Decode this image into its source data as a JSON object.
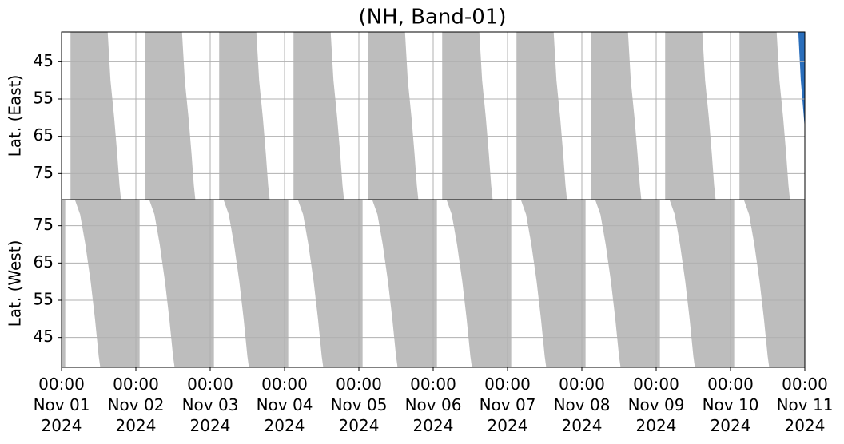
{
  "chart_data": [
    {
      "type": "area",
      "title": "(NH, Band-01)",
      "ylabel": "Lat. (East)",
      "xlim": [
        0,
        240
      ],
      "xticks": [
        0,
        24,
        48,
        72,
        96,
        120,
        144,
        168,
        192,
        216,
        240
      ],
      "ylim": [
        37,
        82
      ],
      "y_inverted": true,
      "yticks": [
        45,
        55,
        65,
        75
      ],
      "grid": true,
      "series": [
        {
          "color": "#bdbdbd",
          "x": [
            2.9,
            14.9,
            15.8,
            17,
            18,
            18.7,
            19.2,
            2.9
          ],
          "values": [
            37,
            37,
            50,
            60,
            70,
            78,
            82,
            82
          ]
        },
        {
          "color": "#bdbdbd",
          "x": [
            26.9,
            38.9,
            39.8,
            41,
            42,
            42.7,
            43.2,
            26.9
          ],
          "values": [
            37,
            37,
            50,
            60,
            70,
            78,
            82,
            82
          ]
        },
        {
          "color": "#bdbdbd",
          "x": [
            50.9,
            62.9,
            63.8,
            65,
            66,
            66.7,
            67.2,
            50.9
          ],
          "values": [
            37,
            37,
            50,
            60,
            70,
            78,
            82,
            82
          ]
        },
        {
          "color": "#bdbdbd",
          "x": [
            74.9,
            86.9,
            87.8,
            89,
            90,
            90.7,
            91.2,
            74.9
          ],
          "values": [
            37,
            37,
            50,
            60,
            70,
            78,
            82,
            82
          ]
        },
        {
          "color": "#bdbdbd",
          "x": [
            98.9,
            110.9,
            111.8,
            113,
            114,
            114.7,
            115.2,
            98.9
          ],
          "values": [
            37,
            37,
            50,
            60,
            70,
            78,
            82,
            82
          ]
        },
        {
          "color": "#bdbdbd",
          "x": [
            122.9,
            134.9,
            135.8,
            137,
            138,
            138.7,
            139.2,
            122.9
          ],
          "values": [
            37,
            37,
            50,
            60,
            70,
            78,
            82,
            82
          ]
        },
        {
          "color": "#bdbdbd",
          "x": [
            146.9,
            158.9,
            159.8,
            161,
            162,
            162.7,
            163.2,
            146.9
          ],
          "values": [
            37,
            37,
            50,
            60,
            70,
            78,
            82,
            82
          ]
        },
        {
          "color": "#bdbdbd",
          "x": [
            170.9,
            182.9,
            183.8,
            185,
            186,
            186.7,
            187.2,
            170.9
          ],
          "values": [
            37,
            37,
            50,
            60,
            70,
            78,
            82,
            82
          ]
        },
        {
          "color": "#bdbdbd",
          "x": [
            194.9,
            206.9,
            207.8,
            209,
            210,
            210.7,
            211.2,
            194.9
          ],
          "values": [
            37,
            37,
            50,
            60,
            70,
            78,
            82,
            82
          ]
        },
        {
          "color": "#bdbdbd",
          "x": [
            218.9,
            230.9,
            231.8,
            233,
            234,
            234.7,
            235.2,
            218.9
          ],
          "values": [
            37,
            37,
            50,
            60,
            70,
            78,
            82,
            82
          ]
        },
        {
          "color": "#2a6ebb",
          "x": [
            237.9,
            238.7,
            240,
            240
          ],
          "values": [
            37,
            50,
            63,
            37
          ]
        }
      ]
    },
    {
      "type": "area",
      "ylabel": "Lat. (West)",
      "xlim": [
        0,
        240
      ],
      "xticks": [
        {
          "value": 0,
          "label": "00:00\nNov 01\n2024"
        },
        {
          "value": 24,
          "label": "00:00\nNov 02\n2024"
        },
        {
          "value": 48,
          "label": "00:00\nNov 03\n2024"
        },
        {
          "value": 72,
          "label": "00:00\nNov 04\n2024"
        },
        {
          "value": 96,
          "label": "00:00\nNov 05\n2024"
        },
        {
          "value": 120,
          "label": "00:00\nNov 06\n2024"
        },
        {
          "value": 144,
          "label": "00:00\nNov 07\n2024"
        },
        {
          "value": 168,
          "label": "00:00\nNov 08\n2024"
        },
        {
          "value": 192,
          "label": "00:00\nNov 09\n2024"
        },
        {
          "value": 216,
          "label": "00:00\nNov 10\n2024"
        },
        {
          "value": 240,
          "label": "00:00\nNov 11\n2024"
        }
      ],
      "ylim": [
        37,
        82
      ],
      "y_inverted": false,
      "yticks": [
        45,
        55,
        65,
        75
      ],
      "grid": true,
      "series": [
        {
          "color": "#bdbdbd",
          "x": [
            0,
            1.2,
            1.2,
            0
          ],
          "values": [
            82,
            82,
            37,
            37
          ]
        },
        {
          "color": "#bdbdbd",
          "x": [
            4.3,
            6,
            7.7,
            9.4,
            10.8,
            12,
            12.5,
            25.2,
            25.2
          ],
          "values": [
            82,
            78,
            70,
            60,
            50,
            40,
            37,
            37,
            82
          ]
        },
        {
          "color": "#bdbdbd",
          "x": [
            28.3,
            30,
            31.7,
            33.4,
            34.8,
            36,
            36.5,
            49.2,
            49.2
          ],
          "values": [
            82,
            78,
            70,
            60,
            50,
            40,
            37,
            37,
            82
          ]
        },
        {
          "color": "#bdbdbd",
          "x": [
            52.3,
            54,
            55.7,
            57.4,
            58.8,
            60,
            60.5,
            73.2,
            73.2
          ],
          "values": [
            82,
            78,
            70,
            60,
            50,
            40,
            37,
            37,
            82
          ]
        },
        {
          "color": "#bdbdbd",
          "x": [
            76.3,
            78,
            79.7,
            81.4,
            82.8,
            84,
            84.5,
            97.2,
            97.2
          ],
          "values": [
            82,
            78,
            70,
            60,
            50,
            40,
            37,
            37,
            82
          ]
        },
        {
          "color": "#bdbdbd",
          "x": [
            100.3,
            102,
            103.7,
            105.4,
            106.8,
            108,
            108.5,
            121.2,
            121.2
          ],
          "values": [
            82,
            78,
            70,
            60,
            50,
            40,
            37,
            37,
            82
          ]
        },
        {
          "color": "#bdbdbd",
          "x": [
            124.3,
            126,
            127.7,
            129.4,
            130.8,
            132,
            132.5,
            145.2,
            145.2
          ],
          "values": [
            82,
            78,
            70,
            60,
            50,
            40,
            37,
            37,
            82
          ]
        },
        {
          "color": "#bdbdbd",
          "x": [
            148.3,
            150,
            151.7,
            153.4,
            154.8,
            156,
            156.5,
            169.2,
            169.2
          ],
          "values": [
            82,
            78,
            70,
            60,
            50,
            40,
            37,
            37,
            82
          ]
        },
        {
          "color": "#bdbdbd",
          "x": [
            172.3,
            174,
            175.7,
            177.4,
            178.8,
            180,
            180.5,
            193.2,
            193.2
          ],
          "values": [
            82,
            78,
            70,
            60,
            50,
            40,
            37,
            37,
            82
          ]
        },
        {
          "color": "#bdbdbd",
          "x": [
            196.3,
            198,
            199.7,
            201.4,
            202.8,
            204,
            204.5,
            217.2,
            217.2
          ],
          "values": [
            82,
            78,
            70,
            60,
            50,
            40,
            37,
            37,
            82
          ]
        },
        {
          "color": "#bdbdbd",
          "x": [
            220.3,
            222,
            223.7,
            225.4,
            226.8,
            228,
            228.5,
            240,
            240
          ],
          "values": [
            82,
            78,
            70,
            60,
            50,
            40,
            37,
            37,
            82
          ]
        }
      ]
    }
  ]
}
